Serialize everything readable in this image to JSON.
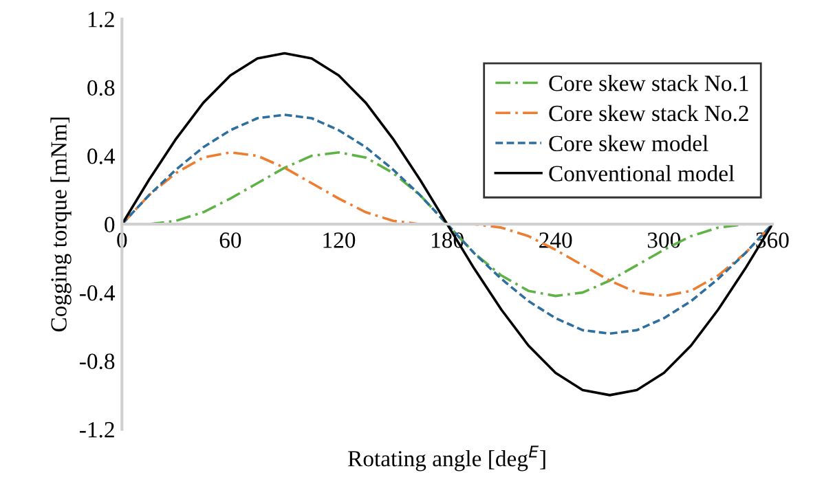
{
  "chart_data": {
    "type": "line",
    "xlabel": "Rotating angle [deg$^{E}$]",
    "ylabel": "Cogging torque [mNm]",
    "x": [
      0,
      15,
      30,
      45,
      60,
      75,
      90,
      105,
      120,
      135,
      150,
      165,
      180,
      195,
      210,
      225,
      240,
      255,
      270,
      285,
      300,
      315,
      330,
      345,
      360
    ],
    "series": [
      {
        "name": "Core skew stack No.1",
        "color": "#5fb346",
        "line_style": "dashdot",
        "values": [
          0,
          0,
          0.02,
          0.07,
          0.15,
          0.24,
          0.33,
          0.4,
          0.42,
          0.39,
          0.3,
          0.17,
          0,
          -0.17,
          -0.3,
          -0.39,
          -0.42,
          -0.4,
          -0.33,
          -0.24,
          -0.15,
          -0.07,
          -0.02,
          0,
          0
        ]
      },
      {
        "name": "Core skew stack No.2",
        "color": "#ed7d31",
        "line_style": "dashdot",
        "values": [
          0,
          0.17,
          0.3,
          0.39,
          0.42,
          0.4,
          0.33,
          0.24,
          0.15,
          0.07,
          0.02,
          0,
          0,
          0,
          -0.02,
          -0.07,
          -0.15,
          -0.24,
          -0.33,
          -0.4,
          -0.42,
          -0.39,
          -0.3,
          -0.17,
          0
        ]
      },
      {
        "name": "Core skew model",
        "color": "#2e6f9e",
        "line_style": "dashed",
        "values": [
          0,
          0.17,
          0.32,
          0.45,
          0.55,
          0.62,
          0.64,
          0.62,
          0.55,
          0.45,
          0.32,
          0.17,
          0,
          -0.17,
          -0.32,
          -0.45,
          -0.55,
          -0.62,
          -0.64,
          -0.62,
          -0.55,
          -0.45,
          -0.32,
          -0.17,
          0
        ]
      },
      {
        "name": "Conventional model",
        "color": "#000000",
        "line_style": "solid",
        "values": [
          0,
          0.26,
          0.5,
          0.71,
          0.87,
          0.97,
          1.0,
          0.97,
          0.87,
          0.71,
          0.5,
          0.26,
          0,
          -0.26,
          -0.5,
          -0.71,
          -0.87,
          -0.97,
          -1.0,
          -0.97,
          -0.87,
          -0.71,
          -0.5,
          -0.26,
          0
        ]
      }
    ],
    "xlim": [
      0,
      360
    ],
    "xticks": [
      0,
      60,
      120,
      180,
      240,
      300,
      360
    ],
    "ylim": [
      -1.2,
      1.2
    ],
    "yticks": [
      {
        "value": -1.2,
        "label": "-1.2"
      },
      {
        "value": -0.8,
        "label": "-0.8"
      },
      {
        "value": -0.4,
        "label": "-0.4"
      },
      0,
      0.4,
      0.8,
      1.2
    ],
    "grid": false,
    "legend": "top right",
    "marker": "none"
  }
}
